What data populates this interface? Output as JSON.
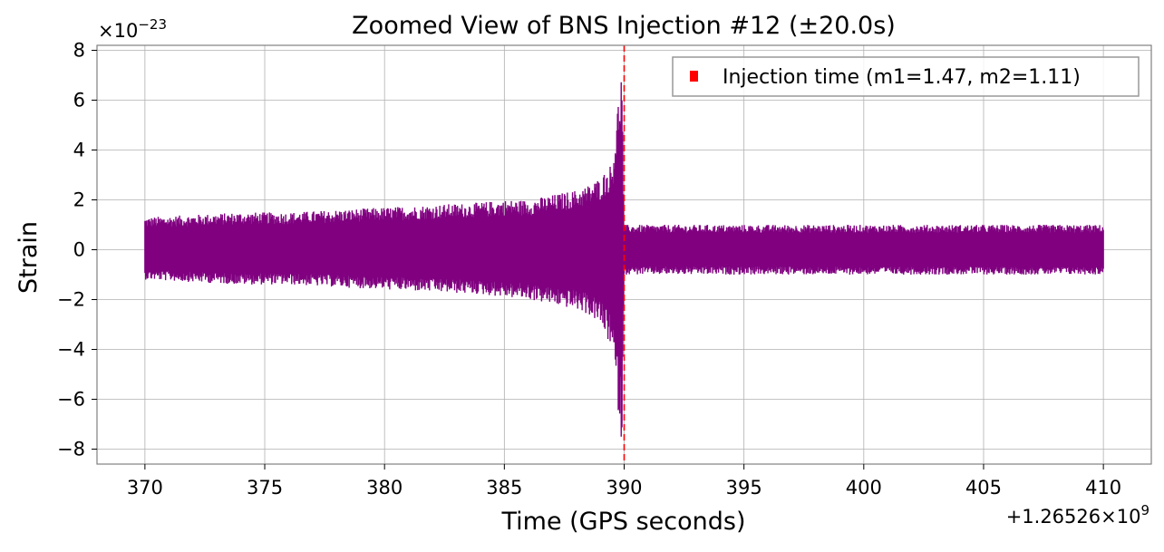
{
  "chart_data": {
    "type": "line",
    "title": "Zoomed View of BNS Injection #12 (±20.0s)",
    "xlabel": "Time (GPS seconds)",
    "ylabel": "Strain",
    "x_offset_label": "+1.26526×10",
    "x_offset_exp": "9",
    "y_scale_label": "×10",
    "y_scale_exp": "−23",
    "xlim": [
      368,
      412
    ],
    "ylim": [
      -8.6,
      8.2
    ],
    "xticks": [
      370,
      375,
      380,
      385,
      390,
      395,
      400,
      405,
      410
    ],
    "xtick_labels": [
      "370",
      "375",
      "380",
      "385",
      "390",
      "395",
      "400",
      "405",
      "410"
    ],
    "yticks": [
      8,
      6,
      4,
      2,
      0,
      -2,
      -4,
      -6,
      -8
    ],
    "ytick_labels": [
      "8",
      "6",
      "4",
      "2",
      "0",
      "−2",
      "−4",
      "−6",
      "−8"
    ],
    "grid": true,
    "legend_position": "top-right",
    "series": [
      {
        "name": "",
        "color": "#800080",
        "style": "filled-noise-envelope",
        "x": [
          370,
          372,
          374,
          376,
          378,
          380,
          382,
          384,
          385,
          386,
          387,
          388,
          388.5,
          389,
          389.5,
          389.9,
          390,
          390.1,
          392,
          395,
          400,
          405,
          410
        ],
        "y_upper": [
          1.3,
          1.4,
          1.5,
          1.5,
          1.6,
          1.7,
          1.8,
          1.9,
          2.0,
          2.0,
          2.2,
          2.4,
          2.6,
          2.9,
          3.5,
          7.5,
          1.0,
          1.0,
          1.0,
          1.0,
          1.0,
          1.0,
          1.0
        ],
        "y_lower": [
          -1.2,
          -1.3,
          -1.4,
          -1.4,
          -1.5,
          -1.6,
          -1.7,
          -1.8,
          -1.9,
          -2.0,
          -2.2,
          -2.4,
          -2.6,
          -3.0,
          -4.0,
          -7.9,
          -1.0,
          -1.0,
          -1.0,
          -1.0,
          -1.0,
          -1.0,
          -1.0
        ]
      }
    ],
    "annotations": [
      {
        "name": "Injection time (m1=1.47, m2=1.11)",
        "x": 390,
        "color": "#ff0000",
        "style": "dashed-vertical-line"
      }
    ]
  }
}
